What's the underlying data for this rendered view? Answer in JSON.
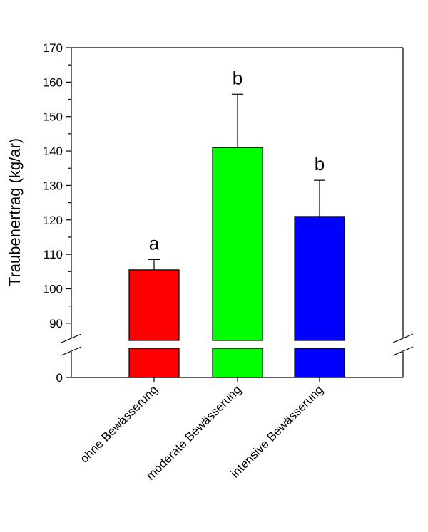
{
  "chart_data": {
    "type": "bar",
    "title": "",
    "xlabel": "",
    "ylabel": "Traubenertrag (kg/ar)",
    "categories": [
      "ohne Bewässerung",
      "moderate Bewässerung",
      "intensive Bewässerung"
    ],
    "values": [
      105.5,
      141,
      121
    ],
    "error_upper": [
      108.5,
      156.5,
      131.5
    ],
    "significance_letters": [
      "a",
      "b",
      "b"
    ],
    "colors": [
      "#ff0000",
      "#00ff00",
      "#0000ff"
    ],
    "ylim_upper": [
      85,
      170
    ],
    "ylim_lower": [
      0,
      85
    ],
    "axis_break": true,
    "yticks": [
      "0",
      "90",
      "100",
      "110",
      "120",
      "130",
      "140",
      "150",
      "160",
      "170"
    ],
    "grid": false,
    "legend": "none"
  }
}
